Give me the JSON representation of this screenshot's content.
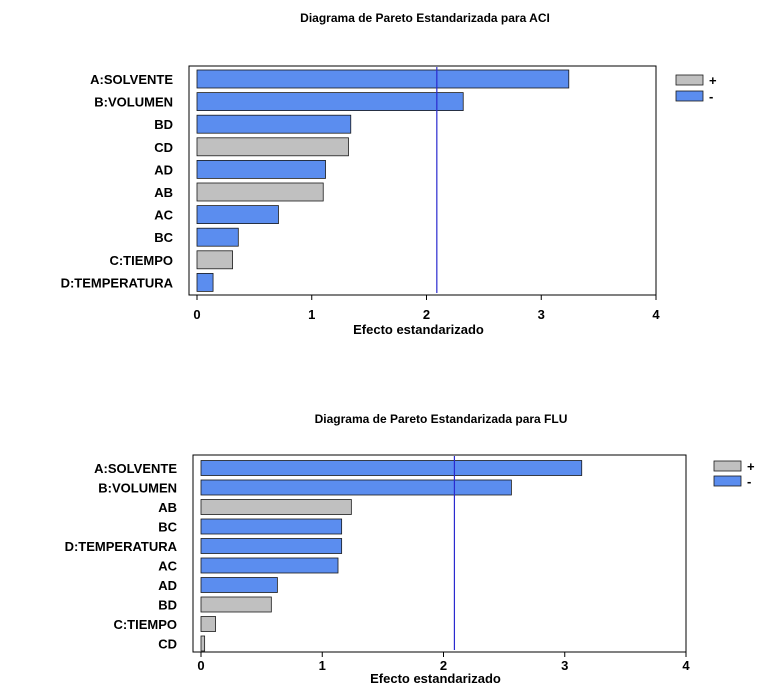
{
  "colors": {
    "positive": "#c0c0c0",
    "negative": "#5b8def",
    "reference_line": "#2a2acf",
    "bar_stroke": "#1a1a1a"
  },
  "chart_data": [
    {
      "type": "bar",
      "orientation": "horizontal",
      "title": "Diagrama de Pareto Estandarizada para ACI",
      "xlabel": "Efecto estandarizado",
      "xlim": [
        0,
        4
      ],
      "xticks": [
        "0",
        "1",
        "2",
        "3",
        "4"
      ],
      "reference_line": 2.09,
      "legend": {
        "placement": "right",
        "items": [
          {
            "label": "+",
            "sign": "+"
          },
          {
            "label": "-",
            "sign": "-"
          }
        ]
      },
      "categories": [
        "A:SOLVENTE",
        "B:VOLUMEN",
        "BD",
        "CD",
        "AD",
        "AB",
        "AC",
        "BC",
        "C:TIEMPO",
        "D:TEMPERATURA"
      ],
      "values": [
        3.24,
        2.32,
        1.34,
        1.32,
        1.12,
        1.1,
        0.71,
        0.36,
        0.31,
        0.14
      ],
      "signs": [
        "-",
        "-",
        "-",
        "+",
        "-",
        "+",
        "-",
        "-",
        "+",
        "-"
      ]
    },
    {
      "type": "bar",
      "orientation": "horizontal",
      "title": "Diagrama de Pareto Estandarizada para FLU",
      "xlabel": "Efecto estandarizado",
      "xlim": [
        0,
        4
      ],
      "xticks": [
        "0",
        "1",
        "2",
        "3",
        "4"
      ],
      "reference_line": 2.09,
      "legend": {
        "placement": "right",
        "items": [
          {
            "label": "+",
            "sign": "+"
          },
          {
            "label": "-",
            "sign": "-"
          }
        ]
      },
      "categories": [
        "A:SOLVENTE",
        "B:VOLUMEN",
        "AB",
        "BC",
        "D:TEMPERATURA",
        "AC",
        "AD",
        "BD",
        "C:TIEMPO",
        "CD"
      ],
      "values": [
        3.14,
        2.56,
        1.24,
        1.16,
        1.16,
        1.13,
        0.63,
        0.58,
        0.12,
        0.03
      ],
      "signs": [
        "-",
        "-",
        "+",
        "-",
        "-",
        "-",
        "-",
        "+",
        "+",
        "+"
      ]
    }
  ]
}
